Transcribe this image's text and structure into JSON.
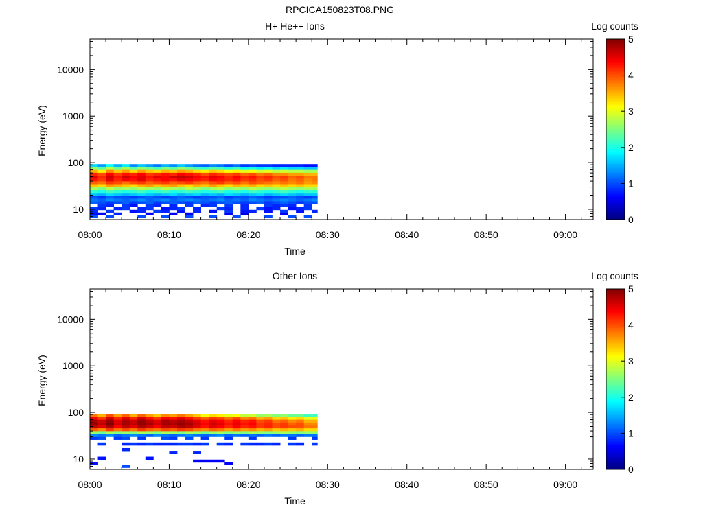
{
  "figure_title": "RPCICA150823T08.PNG",
  "chart_data": [
    {
      "type": "heatmap",
      "title": "H+ He++ Ions",
      "xlabel": "Time",
      "ylabel": "Energy (eV)",
      "x_tick_labels": [
        "08:00",
        "08:10",
        "08:20",
        "08:30",
        "08:40",
        "08:50",
        "09:00"
      ],
      "x_range_minutes": [
        0,
        63.5
      ],
      "y_scale": "log",
      "ylim": [
        6,
        45000
      ],
      "y_tick_labels": [
        "10",
        "100",
        "1000",
        "10000"
      ],
      "colorbar": {
        "label": "Log counts",
        "range": [
          0,
          5
        ],
        "tick_labels": [
          "0",
          "1",
          "2",
          "3",
          "4",
          "5"
        ]
      },
      "data_time_range_minutes": [
        0,
        28.7
      ],
      "time_bin_minutes": 1.0,
      "energy_bins_eV": [
        7,
        8,
        9,
        10.5,
        12,
        14,
        16,
        18.5,
        21,
        24.5,
        28,
        32.5,
        37.5,
        43,
        50,
        57,
        66,
        76,
        87
      ],
      "values": [
        [
          1,
          0,
          1,
          0,
          0,
          0,
          1,
          0,
          0,
          1,
          0,
          0,
          1,
          0,
          0,
          1,
          0,
          0,
          1,
          0,
          0,
          0,
          1,
          0,
          0,
          1,
          0,
          1,
          0
        ],
        [
          0.7,
          0.6,
          0,
          0.8,
          0,
          0,
          0,
          0.6,
          0,
          0,
          0.6,
          0,
          0.6,
          0,
          0,
          0,
          0,
          0.6,
          0,
          0.5,
          0,
          0,
          0,
          0,
          0.6,
          0,
          0,
          0,
          0
        ],
        [
          0.8,
          0,
          0.9,
          0,
          0,
          0.7,
          0.8,
          0,
          0.9,
          0.8,
          0,
          0.7,
          0,
          0.8,
          0,
          0.7,
          0,
          0.9,
          0,
          0.7,
          0.8,
          0,
          0.7,
          0,
          0.9,
          0,
          0.7,
          0,
          0.8
        ],
        [
          0.9,
          0.8,
          0,
          0.8,
          0.9,
          0,
          0.8,
          0.9,
          0,
          0.7,
          0.8,
          0.9,
          0,
          0.8,
          0,
          0,
          0.9,
          0.8,
          0,
          0.8,
          0,
          0.9,
          0.7,
          0.8,
          0,
          0.7,
          0.8,
          0.9,
          0
        ],
        [
          0,
          0.9,
          0.8,
          0,
          0.9,
          0.7,
          0,
          0.9,
          0.8,
          0,
          0.8,
          0,
          0.9,
          0,
          0.8,
          0.9,
          0,
          0.9,
          0,
          0.8,
          0,
          0,
          0.9,
          0.8,
          0.9,
          0.8,
          0,
          0.9,
          0
        ],
        [
          1.1,
          1.0,
          0.9,
          1.0,
          1.1,
          0.9,
          1.0,
          1.1,
          0.9,
          1.0,
          1.1,
          1.0,
          0.9,
          1.1,
          1.0,
          0.9,
          1.0,
          1.1,
          1.0,
          0.9,
          1.0,
          1.1,
          0.9,
          1.0,
          1.1,
          1.0,
          0.9,
          1.0,
          1.0
        ],
        [
          1.2,
          1.1,
          1.3,
          1.2,
          1.1,
          1.2,
          1.3,
          1.1,
          1.2,
          1.3,
          1.1,
          1.2,
          1.3,
          1.2,
          1.1,
          1.2,
          1.3,
          1.1,
          1.2,
          1.1,
          1.3,
          1.2,
          1.1,
          1.2,
          1.3,
          1.2,
          1.1,
          1.2,
          1.3
        ],
        [
          1.0,
          0.9,
          1.1,
          1.0,
          1.0,
          0.9,
          1.0,
          1.1,
          1.0,
          0.9,
          1.0,
          1.1,
          1.0,
          0.9,
          1.0,
          1.0,
          1.1,
          0.9,
          1.0,
          1.0,
          1.1,
          1.0,
          0.9,
          1.0,
          1.0,
          1.1,
          1.0,
          0.9,
          1.0
        ],
        [
          1.6,
          1.5,
          1.7,
          1.6,
          1.5,
          1.6,
          1.7,
          1.6,
          1.5,
          1.6,
          1.7,
          1.5,
          1.6,
          1.7,
          1.5,
          1.6,
          1.5,
          1.7,
          1.6,
          1.5,
          1.6,
          1.7,
          1.5,
          1.6,
          1.7,
          1.6,
          1.5,
          1.6,
          1.6
        ],
        [
          2.1,
          2.0,
          2.2,
          2.1,
          2.0,
          2.1,
          2.2,
          2.0,
          2.1,
          2.2,
          2.0,
          2.1,
          2.2,
          2.1,
          2.0,
          2.1,
          2.2,
          2.0,
          2.1,
          2.0,
          2.2,
          2.1,
          2.0,
          2.1,
          2.2,
          2.1,
          2.0,
          2.1,
          2.1
        ],
        [
          2.7,
          2.5,
          2.8,
          2.6,
          2.7,
          2.6,
          2.8,
          2.7,
          2.6,
          2.8,
          2.7,
          2.6,
          2.8,
          2.7,
          2.5,
          2.7,
          2.8,
          2.6,
          2.7,
          2.6,
          2.8,
          2.7,
          2.6,
          2.7,
          2.8,
          2.7,
          2.6,
          2.7,
          2.7
        ],
        [
          3.4,
          3.3,
          3.6,
          3.5,
          3.4,
          3.3,
          3.5,
          3.6,
          3.4,
          3.5,
          3.6,
          3.4,
          3.3,
          3.5,
          3.4,
          3.6,
          3.4,
          3.3,
          3.5,
          3.4,
          3.5,
          3.3,
          3.4,
          3.3,
          3.4,
          3.3,
          3.4,
          3.3,
          3.3
        ],
        [
          3.9,
          3.8,
          4.1,
          4.0,
          3.8,
          4.0,
          4.1,
          3.9,
          4.0,
          4.1,
          3.9,
          4.0,
          4.1,
          3.9,
          3.8,
          4.0,
          4.1,
          3.9,
          4.0,
          3.8,
          4.0,
          3.9,
          3.8,
          3.7,
          3.8,
          3.7,
          3.8,
          3.6,
          3.7
        ],
        [
          4.3,
          4.1,
          4.5,
          4.2,
          4.4,
          4.3,
          4.5,
          4.2,
          4.3,
          4.4,
          4.3,
          4.5,
          4.4,
          4.3,
          4.2,
          4.4,
          4.3,
          4.2,
          4.3,
          4.1,
          4.2,
          4.0,
          4.1,
          3.9,
          4.0,
          3.8,
          3.9,
          3.7,
          3.8
        ],
        [
          4.5,
          4.2,
          4.6,
          4.3,
          4.6,
          4.4,
          4.5,
          4.3,
          4.5,
          4.4,
          4.6,
          4.7,
          4.6,
          4.4,
          4.3,
          4.5,
          4.4,
          4.2,
          4.4,
          4.2,
          4.3,
          4.1,
          4.2,
          4.0,
          4.1,
          3.9,
          4.0,
          3.8,
          3.8
        ],
        [
          4.2,
          4.0,
          4.4,
          4.1,
          4.3,
          4.2,
          4.4,
          4.1,
          4.2,
          4.3,
          4.2,
          4.4,
          4.3,
          4.2,
          4.0,
          4.2,
          4.1,
          4.0,
          4.1,
          3.9,
          4.0,
          3.8,
          3.9,
          3.7,
          3.7,
          3.6,
          3.6,
          3.5,
          3.5
        ],
        [
          3.5,
          3.2,
          3.7,
          3.4,
          3.6,
          3.3,
          3.6,
          3.4,
          3.3,
          3.5,
          3.4,
          3.6,
          3.5,
          3.3,
          3.2,
          3.4,
          3.3,
          3.1,
          3.2,
          3.0,
          3.1,
          2.9,
          3.0,
          2.8,
          2.9,
          2.8,
          2.8,
          2.7,
          2.7
        ],
        [
          2.6,
          2.3,
          2.8,
          2.4,
          2.7,
          2.3,
          2.6,
          2.4,
          2.2,
          2.5,
          2.3,
          2.6,
          2.4,
          2.2,
          2.1,
          2.3,
          2.2,
          2.0,
          2.2,
          1.9,
          2.0,
          1.8,
          1.9,
          1.7,
          1.8,
          1.7,
          1.7,
          1.6,
          1.6
        ],
        [
          1.7,
          1.4,
          1.9,
          1.5,
          1.8,
          1.3,
          1.6,
          1.4,
          1.2,
          1.5,
          1.3,
          1.6,
          1.4,
          1.2,
          1.1,
          1.3,
          1.2,
          1.0,
          1.2,
          0.9,
          1.0,
          0.9,
          0.9,
          0.8,
          0.8,
          0.8,
          0.8,
          0.7,
          0.7
        ]
      ]
    },
    {
      "type": "heatmap",
      "title": "Other Ions",
      "xlabel": "Time",
      "ylabel": "Energy (eV)",
      "x_tick_labels": [
        "08:00",
        "08:10",
        "08:20",
        "08:30",
        "08:40",
        "08:50",
        "09:00"
      ],
      "x_range_minutes": [
        0,
        63.5
      ],
      "y_scale": "log",
      "ylim": [
        6,
        45000
      ],
      "y_tick_labels": [
        "10",
        "100",
        "1000",
        "10000"
      ],
      "colorbar": {
        "label": "Log counts",
        "range": [
          0,
          5
        ],
        "tick_labels": [
          "0",
          "1",
          "2",
          "3",
          "4",
          "5"
        ]
      },
      "data_time_range_minutes": [
        0,
        28.7
      ],
      "time_bin_minutes": 1.0,
      "energy_bins_eV": [
        7,
        8,
        9,
        10.5,
        12,
        14,
        16,
        18.5,
        21,
        24.5,
        28,
        32.5,
        37.5,
        43,
        50,
        57,
        66,
        76,
        87
      ],
      "values": [
        [
          0,
          0,
          0,
          0,
          1,
          0,
          0,
          0,
          0,
          0,
          0,
          0,
          0,
          0,
          0,
          0,
          0,
          0,
          0,
          0,
          0,
          0,
          0,
          0,
          0,
          0,
          0,
          0,
          0
        ],
        [
          0.7,
          0,
          0,
          0,
          0,
          0,
          0,
          0,
          0,
          0,
          0,
          0,
          0,
          0,
          0,
          0,
          0,
          0.6,
          0,
          0,
          0,
          0,
          0,
          0,
          0,
          0,
          0,
          0,
          0
        ],
        [
          0,
          0,
          0,
          0,
          0,
          0,
          0,
          0,
          0,
          0,
          0,
          0,
          0,
          0.6,
          0.6,
          0.6,
          0.6,
          0,
          0,
          0,
          0,
          0,
          0,
          0,
          0,
          0,
          0,
          0,
          0
        ],
        [
          0,
          0.7,
          0,
          0,
          0,
          0,
          0,
          0.7,
          0,
          0,
          0,
          0,
          0,
          0,
          0,
          0,
          0,
          0,
          0,
          0,
          0,
          0,
          0,
          0,
          0,
          0,
          0,
          0,
          0
        ],
        [
          0,
          0,
          0,
          0,
          0,
          0,
          0,
          0,
          0,
          0,
          0,
          0,
          0,
          0,
          0,
          0,
          0,
          0,
          0,
          0,
          0,
          0,
          0,
          0,
          0,
          0,
          0,
          0,
          0
        ],
        [
          0,
          0,
          0,
          0,
          0,
          0,
          0,
          0,
          0,
          0,
          0.8,
          0,
          0,
          0.8,
          0,
          0,
          0,
          0,
          0,
          0,
          0,
          0,
          0,
          0,
          0,
          0,
          0,
          0,
          0
        ],
        [
          0,
          0,
          0,
          0,
          0.8,
          0,
          0,
          0,
          0,
          0,
          0,
          0,
          0,
          0,
          0,
          0,
          0,
          0,
          0,
          0,
          0,
          0,
          0,
          0,
          0,
          0,
          0,
          0,
          0
        ],
        [
          0,
          0,
          0,
          0,
          0,
          0,
          0,
          0,
          0,
          0,
          0,
          0,
          0,
          0,
          0,
          0,
          0,
          0,
          0,
          0,
          0,
          0,
          0,
          0,
          0,
          0,
          0,
          0,
          0
        ],
        [
          0,
          0.9,
          0,
          0,
          0.8,
          0.9,
          0.8,
          0.9,
          0.8,
          0.8,
          0.8,
          0.9,
          0.9,
          0.8,
          0.9,
          0,
          0.9,
          0.8,
          0,
          0.9,
          0.8,
          0.8,
          0.9,
          0.8,
          0,
          0.9,
          0.8,
          0,
          0.9
        ],
        [
          0,
          0,
          0,
          0,
          0,
          0,
          0,
          0,
          0,
          0,
          0,
          0,
          0,
          0,
          0,
          0,
          0,
          0,
          0,
          0,
          0,
          0,
          0,
          0,
          0,
          0,
          0,
          0,
          0
        ],
        [
          0.9,
          1.0,
          0,
          0.9,
          1.0,
          0,
          0.9,
          0,
          0,
          1.0,
          0.9,
          0,
          1.0,
          0,
          0.9,
          0,
          0,
          0.9,
          0,
          0,
          0.9,
          0,
          0,
          0,
          0,
          0.9,
          0,
          0,
          0.9
        ],
        [
          1.3,
          1.2,
          1.3,
          1.1,
          1.2,
          1.3,
          1.2,
          1.1,
          1.3,
          1.2,
          1.1,
          1.2,
          1.3,
          1.2,
          1.1,
          1.2,
          1.3,
          1.1,
          1.2,
          1.1,
          1.2,
          1.1,
          1.2,
          1.1,
          1.2,
          1.2,
          1.1,
          1.2,
          1.2
        ],
        [
          2.6,
          2.4,
          2.7,
          2.5,
          2.6,
          2.5,
          2.7,
          2.6,
          2.5,
          2.7,
          2.6,
          2.5,
          2.7,
          2.6,
          2.4,
          2.6,
          2.7,
          2.5,
          2.6,
          2.5,
          2.7,
          2.6,
          2.5,
          2.6,
          2.7,
          2.6,
          2.5,
          2.6,
          2.6
        ],
        [
          3.9,
          3.7,
          4.1,
          3.8,
          4.0,
          3.8,
          4.1,
          3.9,
          3.8,
          4.0,
          3.9,
          4.1,
          4.0,
          3.8,
          3.7,
          3.9,
          3.8,
          3.6,
          3.8,
          3.6,
          3.7,
          3.5,
          3.6,
          3.4,
          3.5,
          3.4,
          3.5,
          3.3,
          3.3
        ],
        [
          4.7,
          4.5,
          4.8,
          4.4,
          4.7,
          4.5,
          4.8,
          4.6,
          4.4,
          4.7,
          4.6,
          4.8,
          4.7,
          4.5,
          4.3,
          4.5,
          4.4,
          4.2,
          4.4,
          4.2,
          4.3,
          4.1,
          4.2,
          4.0,
          4.1,
          4.0,
          4.0,
          3.8,
          3.8
        ],
        [
          4.9,
          4.7,
          5.0,
          4.6,
          4.8,
          4.7,
          4.9,
          4.8,
          4.6,
          4.8,
          4.8,
          4.9,
          4.8,
          4.6,
          4.4,
          4.6,
          4.5,
          4.3,
          4.5,
          4.3,
          4.4,
          4.1,
          4.2,
          4.0,
          4.1,
          3.9,
          4.0,
          3.7,
          3.7
        ],
        [
          4.8,
          4.6,
          4.9,
          4.5,
          4.8,
          4.6,
          4.9,
          4.7,
          4.5,
          4.8,
          4.7,
          4.8,
          4.7,
          4.5,
          4.3,
          4.5,
          4.4,
          4.2,
          4.4,
          4.2,
          4.3,
          4.0,
          4.1,
          3.8,
          3.9,
          3.7,
          3.8,
          3.5,
          3.5
        ],
        [
          4.4,
          4.1,
          4.6,
          4.2,
          4.5,
          4.2,
          4.6,
          4.3,
          4.1,
          4.4,
          4.3,
          4.5,
          4.3,
          4.1,
          3.9,
          4.1,
          4.0,
          3.8,
          4.0,
          3.7,
          3.8,
          3.5,
          3.6,
          3.3,
          3.4,
          3.2,
          3.3,
          3.0,
          3.0
        ],
        [
          3.8,
          3.5,
          4.0,
          3.6,
          3.9,
          3.5,
          3.9,
          3.6,
          3.4,
          3.7,
          3.6,
          3.8,
          3.6,
          3.4,
          3.1,
          3.3,
          3.2,
          3.0,
          3.1,
          2.8,
          2.9,
          2.6,
          2.7,
          2.5,
          2.6,
          2.4,
          2.4,
          2.2,
          2.2
        ]
      ]
    }
  ]
}
